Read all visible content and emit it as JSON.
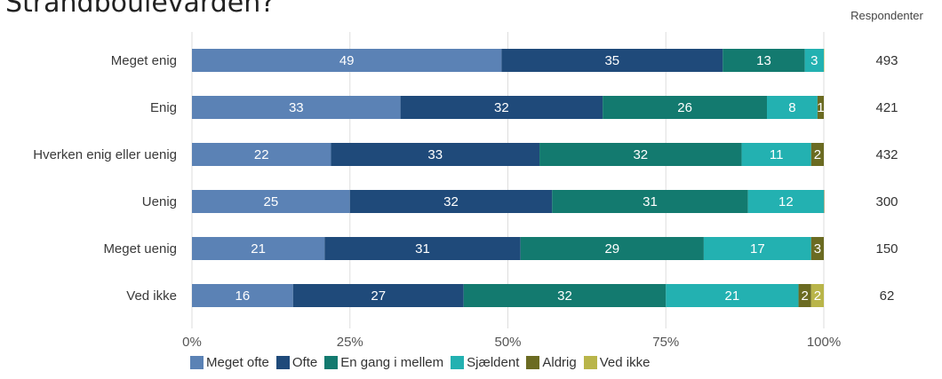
{
  "chart_data": {
    "type": "bar",
    "orientation": "horizontal",
    "stacked": true,
    "title": "Strandboulevarden?",
    "categories": [
      "Meget enig",
      "Enig",
      "Hverken enig eller uenig",
      "Uenig",
      "Meget uenig",
      "Ved ikke"
    ],
    "series": [
      {
        "name": "Meget ofte",
        "color": "#5b82b5",
        "values": [
          49,
          33,
          22,
          25,
          21,
          16
        ],
        "labels": [
          "49",
          "33",
          "22",
          "25",
          "21",
          "16"
        ]
      },
      {
        "name": "Ofte",
        "color": "#1f4a7a",
        "values": [
          35,
          32,
          33,
          32,
          31,
          27
        ],
        "labels": [
          "35",
          "32",
          "33",
          "32",
          "31",
          "27"
        ]
      },
      {
        "name": "En gang i mellem",
        "color": "#137a6f",
        "values": [
          13,
          26,
          32,
          31,
          29,
          32
        ],
        "labels": [
          "13",
          "26",
          "32",
          "31",
          "29",
          "32"
        ]
      },
      {
        "name": "Sjældent",
        "color": "#23b1b1",
        "values": [
          3,
          8,
          11,
          12,
          17,
          21
        ],
        "labels": [
          "3",
          "8",
          "11",
          "12",
          "17",
          "21"
        ]
      },
      {
        "name": "Aldrig",
        "color": "#6b6b22",
        "values": [
          0,
          1,
          2,
          1,
          3,
          2
        ],
        "labels": [
          "",
          "1",
          "2",
          "",
          "3",
          "2"
        ]
      },
      {
        "name": "Ved ikke",
        "color": "#b9b54a",
        "values": [
          0.3,
          0,
          0,
          0,
          0,
          2
        ],
        "labels": [
          "",
          "",
          "",
          "",
          "",
          "2"
        ]
      }
    ],
    "xlim": [
      0,
      100
    ],
    "xticks": [
      "0%",
      "25%",
      "50%",
      "75%",
      "100%"
    ],
    "respondents_header": "Respondenter",
    "respondents": [
      "493",
      "421",
      "432",
      "300",
      "150",
      "62"
    ],
    "legend_position": "bottom",
    "grid": true
  }
}
